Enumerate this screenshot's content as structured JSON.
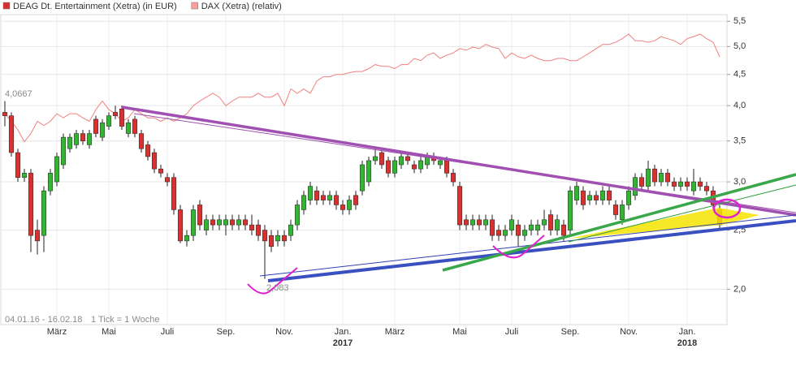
{
  "chart_data": {
    "type": "candlestick",
    "legend": [
      {
        "name": "DEAG Dt. Entertainment (Xetra) (in EUR)",
        "color": "#d93030"
      },
      {
        "name": "DAX (Xetra) (relativ)",
        "color": "#f4a0a0"
      }
    ],
    "legend_position": "top-left",
    "up_color": "#33b533",
    "down_color": "#d93030",
    "line_color": "#f08080",
    "log_scale": true,
    "grid": true,
    "ylim": [
      1.75,
      5.64
    ],
    "yticks": [
      {
        "value": 2,
        "label": "2,0"
      },
      {
        "value": 2.5,
        "label": "2,5"
      },
      {
        "value": 3,
        "label": "3,0"
      },
      {
        "value": 3.5,
        "label": "3,5"
      },
      {
        "value": 4,
        "label": "4,0"
      },
      {
        "value": 4.5,
        "label": "4,5"
      },
      {
        "value": 5,
        "label": "5,0"
      },
      {
        "value": 5.5,
        "label": "5,5"
      }
    ],
    "annotations": [
      "4,0667",
      "2,083",
      "04.01.16 - 16.02.18",
      "1 Tick = 1 Woche"
    ],
    "categories": [
      null,
      null,
      null,
      null,
      null,
      null,
      null,
      null,
      "März",
      null,
      null,
      null,
      null,
      null,
      null,
      null,
      "Mai",
      null,
      null,
      null,
      null,
      null,
      null,
      null,
      null,
      "Juli",
      null,
      null,
      null,
      null,
      null,
      null,
      null,
      null,
      "Sep.",
      null,
      null,
      null,
      null,
      null,
      null,
      null,
      null,
      "Nov.",
      null,
      null,
      null,
      null,
      null,
      null,
      null,
      null,
      "Jan.",
      null,
      null,
      null,
      null,
      null,
      null,
      null,
      "März",
      null,
      null,
      null,
      null,
      null,
      null,
      null,
      null,
      null,
      "Mai",
      null,
      null,
      null,
      null,
      null,
      null,
      null,
      "Juli",
      null,
      null,
      null,
      null,
      null,
      null,
      null,
      null,
      "Sep.",
      null,
      null,
      null,
      null,
      null,
      null,
      null,
      null,
      "Nov.",
      null,
      null,
      null,
      null,
      null,
      null,
      null,
      null,
      "Jan.",
      null,
      null,
      null,
      null,
      null
    ],
    "category_years": [
      null,
      null,
      null,
      null,
      null,
      null,
      null,
      null,
      null,
      null,
      null,
      null,
      null,
      null,
      null,
      null,
      null,
      null,
      null,
      null,
      null,
      null,
      null,
      null,
      null,
      null,
      null,
      null,
      null,
      null,
      null,
      null,
      null,
      null,
      null,
      null,
      null,
      null,
      null,
      null,
      null,
      null,
      null,
      null,
      null,
      null,
      null,
      null,
      null,
      null,
      null,
      null,
      "2017",
      null,
      null,
      null,
      null,
      null,
      null,
      null,
      null,
      null,
      null,
      null,
      null,
      null,
      null,
      null,
      null,
      null,
      null,
      null,
      null,
      null,
      null,
      null,
      null,
      null,
      null,
      null,
      null,
      null,
      null,
      null,
      null,
      null,
      null,
      null,
      null,
      null,
      null,
      null,
      null,
      null,
      null,
      null,
      null,
      null,
      null,
      null,
      null,
      null,
      null,
      null,
      null,
      "2018",
      null,
      null,
      null,
      null,
      null
    ],
    "candles": [
      [
        3.9,
        4.07,
        3.7,
        3.85
      ],
      [
        3.85,
        3.9,
        3.3,
        3.35
      ],
      [
        3.35,
        3.4,
        3.0,
        3.05
      ],
      [
        3.05,
        3.15,
        3.0,
        3.1
      ],
      [
        3.1,
        3.15,
        2.3,
        2.45
      ],
      [
        2.5,
        2.6,
        2.28,
        2.4
      ],
      [
        2.45,
        2.95,
        2.3,
        2.9
      ],
      [
        2.9,
        3.15,
        2.85,
        3.1
      ],
      [
        3.0,
        3.35,
        2.95,
        3.3
      ],
      [
        3.2,
        3.6,
        3.15,
        3.55
      ],
      [
        3.4,
        3.6,
        3.35,
        3.55
      ],
      [
        3.45,
        3.65,
        3.4,
        3.6
      ],
      [
        3.6,
        3.65,
        3.45,
        3.5
      ],
      [
        3.45,
        3.65,
        3.4,
        3.6
      ],
      [
        3.8,
        3.85,
        3.55,
        3.6
      ],
      [
        3.55,
        3.8,
        3.5,
        3.75
      ],
      [
        3.7,
        3.9,
        3.65,
        3.85
      ],
      [
        3.9,
        4.0,
        3.8,
        3.85
      ],
      [
        3.95,
        4.0,
        3.65,
        3.7
      ],
      [
        3.6,
        3.8,
        3.55,
        3.75
      ],
      [
        3.8,
        3.85,
        3.55,
        3.6
      ],
      [
        3.6,
        3.65,
        3.35,
        3.4
      ],
      [
        3.45,
        3.5,
        3.25,
        3.3
      ],
      [
        3.35,
        3.4,
        3.1,
        3.15
      ],
      [
        3.15,
        3.2,
        3.05,
        3.1
      ],
      [
        3.05,
        3.1,
        2.95,
        3.0
      ],
      [
        3.05,
        3.1,
        2.65,
        2.7
      ],
      [
        2.7,
        2.75,
        2.38,
        2.4
      ],
      [
        2.4,
        2.5,
        2.35,
        2.45
      ],
      [
        2.45,
        2.75,
        2.4,
        2.7
      ],
      [
        2.75,
        2.8,
        2.5,
        2.55
      ],
      [
        2.5,
        2.65,
        2.45,
        2.6
      ],
      [
        2.6,
        2.65,
        2.5,
        2.55
      ],
      [
        2.55,
        2.65,
        2.5,
        2.6
      ],
      [
        2.55,
        2.65,
        2.45,
        2.6
      ],
      [
        2.6,
        2.65,
        2.5,
        2.55
      ],
      [
        2.55,
        2.65,
        2.5,
        2.6
      ],
      [
        2.6,
        2.65,
        2.5,
        2.55
      ],
      [
        2.55,
        2.65,
        2.45,
        2.5
      ],
      [
        2.55,
        2.6,
        2.4,
        2.45
      ],
      [
        2.5,
        2.55,
        2.08,
        2.4
      ],
      [
        2.45,
        2.5,
        2.3,
        2.35
      ],
      [
        2.4,
        2.5,
        2.35,
        2.45
      ],
      [
        2.45,
        2.5,
        2.35,
        2.4
      ],
      [
        2.45,
        2.6,
        2.4,
        2.55
      ],
      [
        2.55,
        2.8,
        2.5,
        2.75
      ],
      [
        2.7,
        2.9,
        2.65,
        2.85
      ],
      [
        2.8,
        3.0,
        2.75,
        2.95
      ],
      [
        2.9,
        2.95,
        2.75,
        2.8
      ],
      [
        2.85,
        2.9,
        2.75,
        2.8
      ],
      [
        2.8,
        2.9,
        2.75,
        2.85
      ],
      [
        2.85,
        2.9,
        2.7,
        2.75
      ],
      [
        2.75,
        2.8,
        2.65,
        2.7
      ],
      [
        2.7,
        2.85,
        2.65,
        2.8
      ],
      [
        2.85,
        2.9,
        2.7,
        2.75
      ],
      [
        2.9,
        3.25,
        2.85,
        3.2
      ],
      [
        3.0,
        3.3,
        2.95,
        3.25
      ],
      [
        3.25,
        3.4,
        3.2,
        3.3
      ],
      [
        3.35,
        3.4,
        3.15,
        3.2
      ],
      [
        3.25,
        3.3,
        3.05,
        3.1
      ],
      [
        3.1,
        3.3,
        3.05,
        3.25
      ],
      [
        3.2,
        3.35,
        3.15,
        3.3
      ],
      [
        3.3,
        3.35,
        3.2,
        3.25
      ],
      [
        3.2,
        3.25,
        3.1,
        3.15
      ],
      [
        3.15,
        3.3,
        3.1,
        3.25
      ],
      [
        3.2,
        3.35,
        3.15,
        3.3
      ],
      [
        3.3,
        3.35,
        3.2,
        3.25
      ],
      [
        3.2,
        3.3,
        3.15,
        3.25
      ],
      [
        3.25,
        3.3,
        3.05,
        3.1
      ],
      [
        3.1,
        3.15,
        2.95,
        3.0
      ],
      [
        2.95,
        3.0,
        2.5,
        2.55
      ],
      [
        2.6,
        2.65,
        2.5,
        2.55
      ],
      [
        2.55,
        2.65,
        2.5,
        2.6
      ],
      [
        2.6,
        2.65,
        2.5,
        2.55
      ],
      [
        2.55,
        2.65,
        2.5,
        2.6
      ],
      [
        2.6,
        2.65,
        2.4,
        2.45
      ],
      [
        2.5,
        2.55,
        2.4,
        2.45
      ],
      [
        2.45,
        2.55,
        2.4,
        2.5
      ],
      [
        2.5,
        2.65,
        2.45,
        2.6
      ],
      [
        2.55,
        2.6,
        2.35,
        2.45
      ],
      [
        2.45,
        2.55,
        2.4,
        2.5
      ],
      [
        2.5,
        2.6,
        2.45,
        2.55
      ],
      [
        2.5,
        2.6,
        2.45,
        2.55
      ],
      [
        2.55,
        2.7,
        2.5,
        2.6
      ],
      [
        2.65,
        2.7,
        2.45,
        2.5
      ],
      [
        2.5,
        2.65,
        2.45,
        2.6
      ],
      [
        2.55,
        2.6,
        2.4,
        2.45
      ],
      [
        2.5,
        2.95,
        2.45,
        2.9
      ],
      [
        2.8,
        3.0,
        2.75,
        2.95
      ],
      [
        2.9,
        2.95,
        2.7,
        2.75
      ],
      [
        2.8,
        2.9,
        2.75,
        2.85
      ],
      [
        2.85,
        2.9,
        2.75,
        2.8
      ],
      [
        2.8,
        2.95,
        2.75,
        2.9
      ],
      [
        2.9,
        2.95,
        2.75,
        2.8
      ],
      [
        2.75,
        2.8,
        2.6,
        2.65
      ],
      [
        2.6,
        2.8,
        2.55,
        2.75
      ],
      [
        2.75,
        2.95,
        2.7,
        2.9
      ],
      [
        2.85,
        3.1,
        2.8,
        3.05
      ],
      [
        3.05,
        3.1,
        2.9,
        2.95
      ],
      [
        2.95,
        3.25,
        2.9,
        3.15
      ],
      [
        3.15,
        3.2,
        2.95,
        3.0
      ],
      [
        3.0,
        3.15,
        2.95,
        3.1
      ],
      [
        3.1,
        3.15,
        2.95,
        3.0
      ],
      [
        3.0,
        3.05,
        2.9,
        2.95
      ],
      [
        2.95,
        3.05,
        2.9,
        3.0
      ],
      [
        3.0,
        3.05,
        2.9,
        2.95
      ],
      [
        2.9,
        3.15,
        2.85,
        3.0
      ],
      [
        3.0,
        3.05,
        2.9,
        2.95
      ],
      [
        2.95,
        3.0,
        2.85,
        2.9
      ],
      [
        2.9,
        2.95,
        2.7,
        2.75
      ],
      [
        2.7,
        2.75,
        2.5,
        2.55
      ]
    ],
    "dax_values": [
      3.88,
      3.77,
      3.65,
      3.49,
      3.6,
      3.77,
      3.71,
      3.77,
      3.88,
      3.82,
      3.88,
      3.88,
      3.82,
      3.77,
      3.94,
      4.07,
      3.94,
      3.88,
      3.77,
      3.82,
      3.94,
      3.88,
      3.82,
      3.82,
      3.77,
      3.82,
      3.77,
      3.82,
      3.88,
      4.0,
      4.07,
      4.13,
      4.19,
      4.13,
      4.0,
      4.07,
      4.13,
      4.13,
      4.13,
      4.19,
      4.13,
      4.13,
      4.19,
      4.0,
      4.26,
      4.19,
      4.26,
      4.19,
      4.39,
      4.46,
      4.46,
      4.5,
      4.5,
      4.53,
      4.55,
      4.55,
      4.6,
      4.67,
      4.64,
      4.64,
      4.6,
      4.67,
      4.67,
      4.78,
      4.74,
      4.84,
      4.88,
      4.78,
      4.84,
      4.88,
      4.96,
      4.93,
      4.99,
      4.96,
      5.04,
      4.99,
      4.96,
      4.78,
      4.88,
      4.81,
      4.78,
      4.84,
      4.78,
      4.74,
      4.74,
      4.78,
      4.78,
      4.74,
      4.74,
      4.81,
      4.88,
      4.96,
      5.04,
      5.04,
      5.08,
      5.15,
      5.24,
      5.11,
      5.11,
      5.08,
      5.11,
      5.19,
      5.15,
      5.11,
      5.04,
      5.15,
      5.19,
      5.24,
      5.15,
      5.08,
      4.81
    ]
  }
}
